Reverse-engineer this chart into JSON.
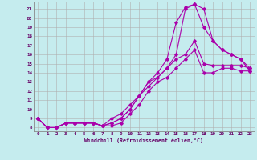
{
  "background_color": "#c5ecee",
  "grid_color": "#b0b0b0",
  "line_color": "#aa00aa",
  "xlabel": "Windchill (Refroidissement éolien,°C)",
  "x_ticks": [
    0,
    1,
    2,
    3,
    4,
    5,
    6,
    7,
    8,
    9,
    10,
    11,
    12,
    13,
    14,
    15,
    16,
    17,
    18,
    19,
    20,
    21,
    22,
    23
  ],
  "y_ticks": [
    8,
    9,
    10,
    11,
    12,
    13,
    14,
    15,
    16,
    17,
    18,
    19,
    20,
    21
  ],
  "ylim": [
    7.6,
    21.8
  ],
  "xlim": [
    -0.5,
    23.5
  ],
  "line1_x": [
    0,
    1,
    2,
    3,
    4,
    5,
    6,
    7,
    8,
    9,
    10,
    11,
    12,
    13,
    14,
    15,
    16,
    17,
    18,
    19,
    20,
    21,
    22,
    23
  ],
  "line1_y": [
    9.0,
    8.0,
    8.0,
    8.5,
    8.5,
    8.5,
    8.5,
    8.2,
    9.0,
    9.5,
    10.5,
    11.5,
    13.0,
    14.0,
    15.5,
    19.5,
    21.2,
    21.5,
    19.0,
    17.5,
    16.5,
    16.0,
    15.5,
    14.2
  ],
  "line2_x": [
    0,
    1,
    2,
    3,
    4,
    5,
    6,
    7,
    8,
    9,
    10,
    11,
    12,
    13,
    14,
    15,
    16,
    17,
    18,
    19,
    20,
    21,
    22,
    23
  ],
  "line2_y": [
    9.0,
    8.0,
    8.0,
    8.5,
    8.5,
    8.5,
    8.5,
    8.2,
    8.5,
    9.0,
    10.0,
    11.5,
    13.0,
    13.5,
    14.5,
    16.0,
    21.0,
    21.5,
    21.0,
    17.5,
    16.5,
    16.0,
    15.5,
    14.5
  ],
  "line3_x": [
    0,
    1,
    2,
    3,
    4,
    5,
    6,
    7,
    8,
    9,
    10,
    11,
    12,
    13,
    14,
    15,
    16,
    17,
    18,
    19,
    20,
    21,
    22,
    23
  ],
  "line3_y": [
    9.0,
    8.0,
    8.0,
    8.5,
    8.5,
    8.5,
    8.5,
    8.2,
    8.5,
    9.0,
    10.0,
    11.5,
    12.5,
    13.5,
    14.5,
    15.5,
    16.0,
    17.5,
    15.0,
    14.8,
    14.8,
    14.8,
    14.8,
    14.5
  ],
  "line4_x": [
    0,
    1,
    2,
    3,
    4,
    5,
    6,
    7,
    8,
    9,
    10,
    11,
    12,
    13,
    14,
    15,
    16,
    17,
    18,
    19,
    20,
    21,
    22,
    23
  ],
  "line4_y": [
    9.0,
    8.0,
    8.0,
    8.5,
    8.5,
    8.5,
    8.5,
    8.2,
    8.2,
    8.5,
    9.5,
    10.5,
    12.0,
    13.0,
    13.5,
    14.5,
    15.5,
    16.5,
    14.0,
    14.0,
    14.5,
    14.5,
    14.2,
    14.2
  ]
}
